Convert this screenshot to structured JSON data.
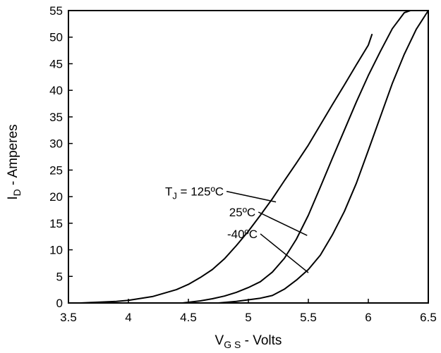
{
  "chart_data": {
    "type": "line",
    "xlabel": "V",
    "xlabel_sub": "G S",
    "xlabel_rest": " - Volts",
    "ylabel": "I",
    "ylabel_sub": "D",
    "ylabel_rest": " - Amperes",
    "xlim": [
      3.5,
      6.5
    ],
    "ylim": [
      0,
      55
    ],
    "x_ticks": [
      "3.5",
      "4",
      "4.5",
      "5",
      "5.5",
      "6",
      "6.5"
    ],
    "y_ticks": [
      "0",
      "5",
      "10",
      "15",
      "20",
      "25",
      "30",
      "35",
      "40",
      "45",
      "50",
      "55"
    ],
    "grid": false,
    "series": [
      {
        "name": "TJ = 125ºC",
        "x": [
          3.6,
          3.7,
          3.9,
          4.0,
          4.2,
          4.4,
          4.5,
          4.6,
          4.7,
          4.8,
          4.9,
          5.0,
          5.1,
          5.2,
          5.3,
          5.4,
          5.5,
          5.6,
          5.7,
          5.8,
          5.9,
          6.0,
          6.03
        ],
        "values": [
          0,
          0.1,
          0.3,
          0.5,
          1.2,
          2.5,
          3.5,
          4.8,
          6.3,
          8.3,
          10.8,
          13.5,
          16.5,
          19.6,
          23.0,
          26.3,
          29.7,
          33.5,
          37.3,
          41.0,
          44.8,
          48.5,
          50.5
        ]
      },
      {
        "name": "25ºC",
        "x": [
          4.45,
          4.6,
          4.7,
          4.8,
          4.9,
          5.0,
          5.1,
          5.2,
          5.3,
          5.4,
          5.5,
          5.6,
          5.7,
          5.8,
          5.9,
          6.0,
          6.1,
          6.2,
          6.3,
          6.35
        ],
        "values": [
          0,
          0.4,
          0.8,
          1.3,
          2.0,
          2.9,
          4.0,
          5.8,
          8.4,
          12.0,
          16.5,
          21.8,
          27.2,
          32.5,
          37.8,
          42.8,
          47.3,
          51.6,
          54.6,
          55
        ]
      },
      {
        "name": "-40ºC",
        "x": [
          4.75,
          4.9,
          5.0,
          5.1,
          5.2,
          5.3,
          5.4,
          5.5,
          5.6,
          5.7,
          5.8,
          5.9,
          6.0,
          6.1,
          6.2,
          6.3,
          6.4,
          6.5
        ],
        "values": [
          0,
          0.3,
          0.6,
          0.9,
          1.4,
          2.6,
          4.3,
          6.3,
          9.0,
          12.8,
          17.2,
          22.5,
          28.7,
          35.0,
          41.3,
          46.8,
          51.5,
          55
        ]
      }
    ],
    "annotations": [
      {
        "label": "T",
        "sub": "J",
        "rest": " = 125ºC",
        "series": 0,
        "text_x": 4.55,
        "text_y": 20.2,
        "target_x": 5.23,
        "target_y": 19.0
      },
      {
        "label": "25ºC",
        "sub": "",
        "rest": "",
        "series": 1,
        "text_x": 4.95,
        "text_y": 16.3,
        "target_x": 5.49,
        "target_y": 12.7
      },
      {
        "label": "-40ºC",
        "sub": "",
        "rest": "",
        "series": 2,
        "text_x": 4.95,
        "text_y": 12.2,
        "target_x": 5.5,
        "target_y": 5.7
      }
    ]
  }
}
